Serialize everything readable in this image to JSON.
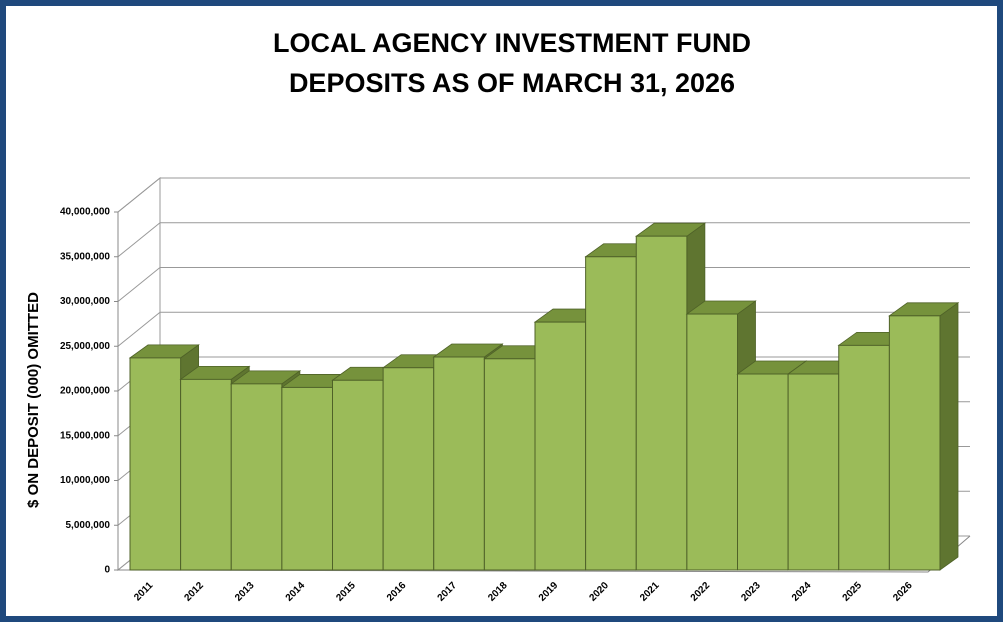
{
  "chart_data": {
    "type": "bar3d",
    "title": [
      "LOCAL AGENCY INVESTMENT FUND",
      "DEPOSITS AS OF MARCH 31, 2026"
    ],
    "y_label": "$ ON DEPOSIT (000) OMITTED",
    "categories": [
      "2011",
      "2012",
      "2013",
      "2014",
      "2015",
      "2016",
      "2017",
      "2018",
      "2019",
      "2020",
      "2021",
      "2022",
      "2023",
      "2024",
      "2025",
      "2026"
    ],
    "values": [
      23700000,
      21300000,
      20800000,
      20400000,
      21200000,
      22600000,
      23800000,
      23600000,
      27700000,
      35000000,
      37300000,
      28600000,
      21900000,
      21900000,
      25100000,
      28400000
    ],
    "color": "#9bbb59",
    "ylim": [
      0,
      40000000
    ],
    "yticks": [
      0,
      {
        "value": 5000000,
        "label": "5,000,000"
      },
      {
        "value": 10000000,
        "label": "10,000,000"
      },
      {
        "value": 15000000,
        "label": "15,000,000"
      },
      {
        "value": 20000000,
        "label": "20,000,000"
      },
      {
        "value": 25000000,
        "label": "25,000,000"
      },
      {
        "value": 30000000,
        "label": "30,000,000"
      },
      {
        "value": 35000000,
        "label": "35,000,000"
      },
      {
        "value": 40000000,
        "label": "40,000,000"
      }
    ],
    "grid": true
  }
}
